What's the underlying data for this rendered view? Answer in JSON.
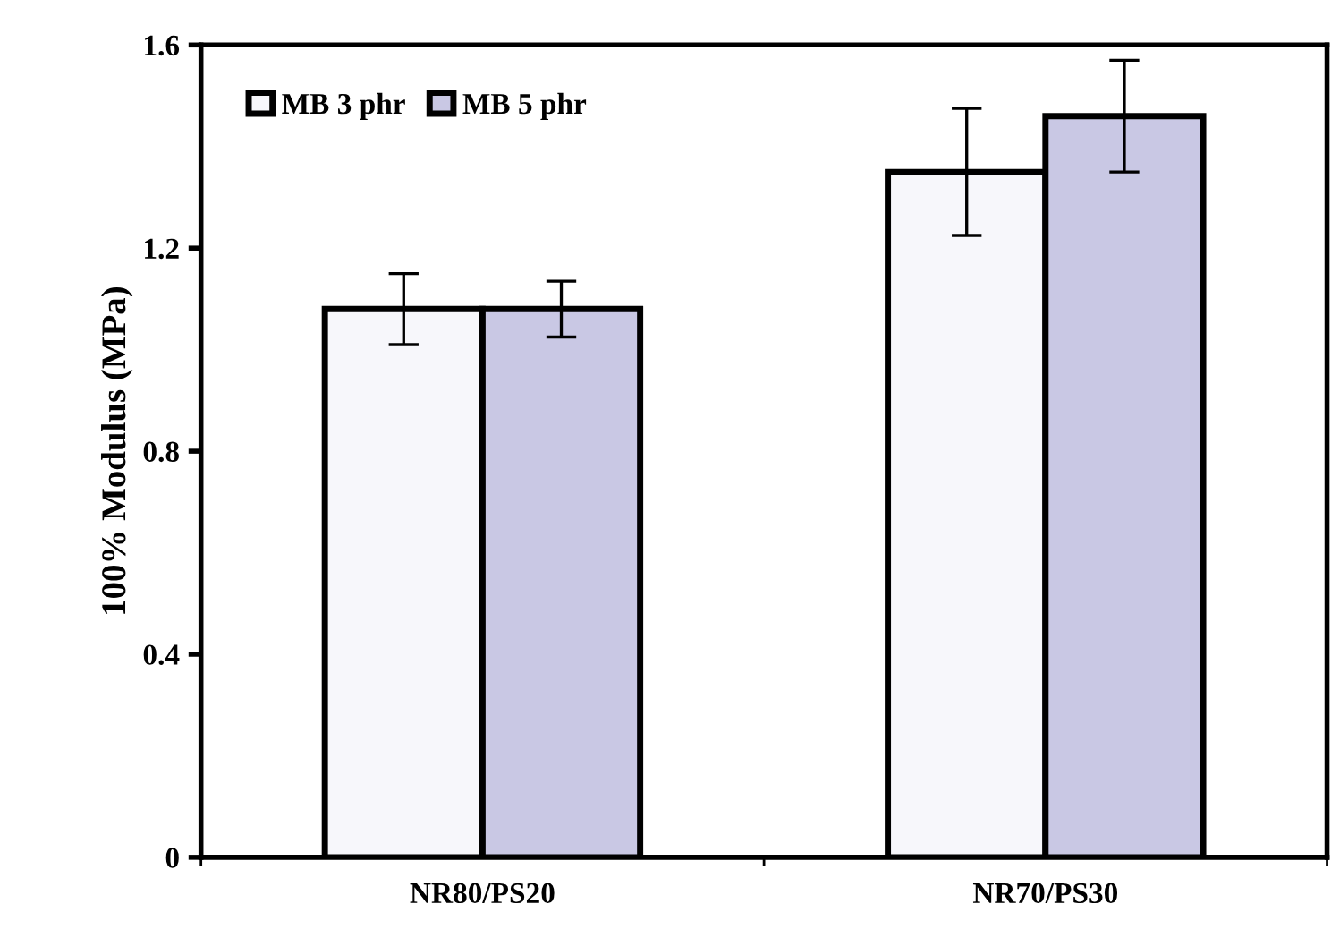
{
  "chart_data": {
    "type": "bar",
    "ylabel": "100% Modulus (MPa)",
    "categories": [
      "NR80/PS20",
      "NR70/PS30"
    ],
    "series": [
      {
        "name": "MB 3 phr",
        "color": "#f7f7fb",
        "values": [
          1.08,
          1.35
        ],
        "errors": [
          0.07,
          0.125
        ]
      },
      {
        "name": "MB 5 phr",
        "color": "#c9c8e4",
        "values": [
          1.08,
          1.46
        ],
        "errors": [
          0.055,
          0.11
        ]
      }
    ],
    "ylim": [
      0,
      1.6
    ],
    "yticks": [
      0,
      0.4,
      0.8,
      1.2,
      1.6
    ],
    "grid": false,
    "legend": "top left"
  }
}
